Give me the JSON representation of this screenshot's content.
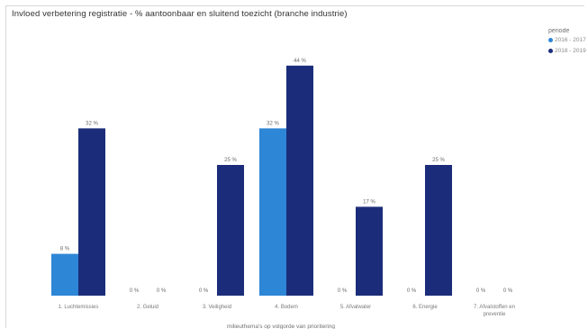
{
  "chart_data": {
    "type": "bar",
    "title": "Invloed verbetering registratie - % aantoonbaar en sluitend toezicht (branche industrie)",
    "xlabel": "milieuthema's op volgorde van prioritering",
    "ylabel": "",
    "ylim": [
      0,
      50
    ],
    "grid": false,
    "legend_title": "periode",
    "legend_position": "top-right",
    "categories": [
      "1. Luchtemissies",
      "2. Geluid",
      "3. Veiligheid",
      "4. Bodem",
      "5. Afvalwater",
      "6. Energie",
      "7. Afvalstoffen en preventie"
    ],
    "series": [
      {
        "name": "2016 - 2017",
        "color": "#2e86d6",
        "values": [
          8,
          0,
          0,
          32,
          0,
          0,
          0
        ],
        "labels": [
          "8 %",
          "0 %",
          "0 %",
          "32 %",
          "0 %",
          "0 %",
          "0 %"
        ]
      },
      {
        "name": "2018 - 2019",
        "color": "#1b2d7a",
        "values": [
          32,
          0,
          25,
          44,
          17,
          25,
          0
        ],
        "labels": [
          "32 %",
          "0 %",
          "25 %",
          "44 %",
          "17 %",
          "25 %",
          "0 %"
        ]
      }
    ]
  }
}
